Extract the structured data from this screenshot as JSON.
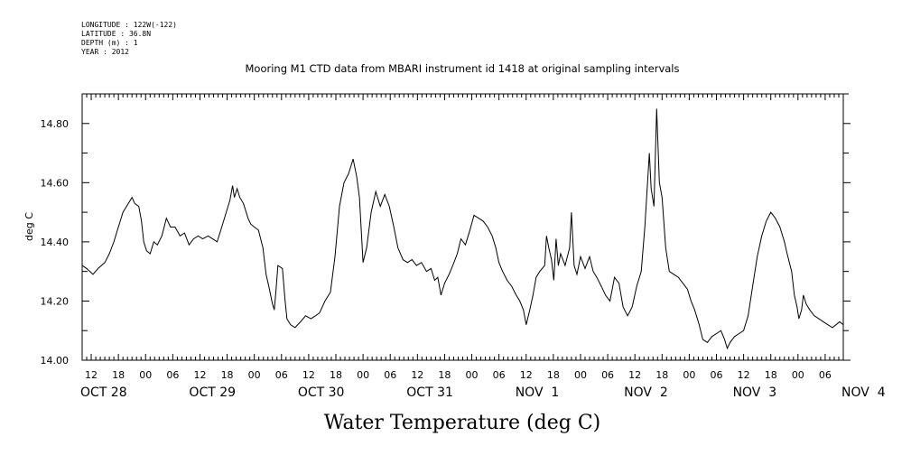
{
  "header": {
    "lines": [
      "LONGITUDE : 122W(-122)",
      "LATITUDE : 36.8N",
      "DEPTH (m) : 1",
      "YEAR : 2012"
    ]
  },
  "chart_data": {
    "type": "line",
    "title": "Mooring M1 CTD data from MBARI instrument id 1418 at original sampling intervals",
    "xlabel": "Water Temperature (deg C)",
    "ylabel": "deg C",
    "ylim": [
      14.0,
      14.9
    ],
    "yticks": [
      "14.00",
      "14.20",
      "14.40",
      "14.60",
      "14.80"
    ],
    "xlim_hours": [
      -14,
      154
    ],
    "x_hour_ticks": [
      "12",
      "18",
      "00",
      "06",
      "12",
      "18",
      "00",
      "06",
      "12",
      "18",
      "00",
      "06",
      "12",
      "18",
      "00",
      "06",
      "12",
      "18",
      "00",
      "06",
      "12",
      "18",
      "00",
      "06",
      "12",
      "18",
      "00",
      "06"
    ],
    "day_labels": [
      "OCT 28",
      "OCT 29",
      "OCT 30",
      "OCT 31",
      "NOV  1",
      "NOV  2",
      "NOV  3",
      "NOV  4"
    ],
    "grid": false,
    "series": [
      {
        "x_unit": "hours since OCT 29 00:00",
        "points": [
          [
            -14,
            14.32
          ],
          [
            -13,
            14.31
          ],
          [
            -11.6,
            14.29
          ],
          [
            -10.5,
            14.31
          ],
          [
            -9,
            14.33
          ],
          [
            -8,
            14.36
          ],
          [
            -7,
            14.4
          ],
          [
            -6,
            14.45
          ],
          [
            -5,
            14.5
          ],
          [
            -3.8,
            14.53
          ],
          [
            -3,
            14.55
          ],
          [
            -2.4,
            14.53
          ],
          [
            -1.5,
            14.52
          ],
          [
            -0.9,
            14.47
          ],
          [
            -0.4,
            14.4
          ],
          [
            0.2,
            14.37
          ],
          [
            1,
            14.36
          ],
          [
            1.8,
            14.4
          ],
          [
            2.6,
            14.39
          ],
          [
            3.6,
            14.42
          ],
          [
            4.6,
            14.48
          ],
          [
            5.5,
            14.45
          ],
          [
            6.5,
            14.45
          ],
          [
            7.6,
            14.42
          ],
          [
            8.6,
            14.43
          ],
          [
            9.6,
            14.39
          ],
          [
            10.6,
            14.41
          ],
          [
            11.6,
            14.42
          ],
          [
            12.6,
            14.41
          ],
          [
            13.8,
            14.42
          ],
          [
            14.8,
            14.41
          ],
          [
            15.8,
            14.4
          ],
          [
            16.8,
            14.45
          ],
          [
            17.6,
            14.49
          ],
          [
            18.6,
            14.54
          ],
          [
            19.2,
            14.59
          ],
          [
            19.6,
            14.55
          ],
          [
            20.2,
            14.58
          ],
          [
            20.8,
            14.55
          ],
          [
            21.6,
            14.53
          ],
          [
            22.6,
            14.48
          ],
          [
            23.2,
            14.46
          ],
          [
            24,
            14.45
          ],
          [
            24.9,
            14.44
          ],
          [
            25.9,
            14.38
          ],
          [
            26.6,
            14.29
          ],
          [
            27.2,
            14.25
          ],
          [
            28,
            14.19
          ],
          [
            28.4,
            14.17
          ],
          [
            28.8,
            14.24
          ],
          [
            29.2,
            14.32
          ],
          [
            30.2,
            14.31
          ],
          [
            30.8,
            14.2
          ],
          [
            31.2,
            14.14
          ],
          [
            32,
            14.12
          ],
          [
            33,
            14.11
          ],
          [
            34.2,
            14.13
          ],
          [
            35.3,
            14.15
          ],
          [
            36.5,
            14.14
          ],
          [
            37.5,
            14.15
          ],
          [
            38.4,
            14.16
          ],
          [
            39.6,
            14.2
          ],
          [
            40.8,
            14.23
          ],
          [
            41.8,
            14.35
          ],
          [
            42.8,
            14.52
          ],
          [
            43.8,
            14.6
          ],
          [
            44.8,
            14.63
          ],
          [
            45.8,
            14.68
          ],
          [
            46.6,
            14.62
          ],
          [
            47.2,
            14.55
          ],
          [
            48,
            14.33
          ],
          [
            48.8,
            14.38
          ],
          [
            49.8,
            14.5
          ],
          [
            50.8,
            14.57
          ],
          [
            51.8,
            14.52
          ],
          [
            52.8,
            14.56
          ],
          [
            53.8,
            14.52
          ],
          [
            54.8,
            14.45
          ],
          [
            55.7,
            14.38
          ],
          [
            56.8,
            14.34
          ],
          [
            57.8,
            14.33
          ],
          [
            58.8,
            14.34
          ],
          [
            59.8,
            14.32
          ],
          [
            60.9,
            14.33
          ],
          [
            62,
            14.3
          ],
          [
            63,
            14.31
          ],
          [
            63.8,
            14.27
          ],
          [
            64.5,
            14.28
          ],
          [
            65.2,
            14.22
          ],
          [
            66,
            14.26
          ],
          [
            67,
            14.29
          ],
          [
            67.8,
            14.32
          ],
          [
            68.8,
            14.36
          ],
          [
            69.6,
            14.41
          ],
          [
            70.6,
            14.39
          ],
          [
            71.6,
            14.44
          ],
          [
            72.5,
            14.49
          ],
          [
            73.5,
            14.48
          ],
          [
            74.5,
            14.47
          ],
          [
            75.5,
            14.45
          ],
          [
            76.5,
            14.42
          ],
          [
            77.3,
            14.38
          ],
          [
            78,
            14.33
          ],
          [
            78.8,
            14.3
          ],
          [
            79.8,
            14.27
          ],
          [
            80.8,
            14.25
          ],
          [
            81.8,
            14.22
          ],
          [
            82.6,
            14.2
          ],
          [
            83.4,
            14.17
          ],
          [
            84,
            14.12
          ],
          [
            84.8,
            14.17
          ],
          [
            85.5,
            14.22
          ],
          [
            86.2,
            14.28
          ],
          [
            87,
            14.3
          ],
          [
            88.1,
            14.32
          ],
          [
            88.5,
            14.42
          ],
          [
            89,
            14.38
          ],
          [
            89.6,
            14.34
          ],
          [
            90.1,
            14.27
          ],
          [
            90.6,
            14.41
          ],
          [
            91.1,
            14.32
          ],
          [
            91.6,
            14.36
          ],
          [
            92.6,
            14.32
          ],
          [
            93.6,
            14.38
          ],
          [
            94,
            14.5
          ],
          [
            94.6,
            14.32
          ],
          [
            95.2,
            14.29
          ],
          [
            96,
            14.35
          ],
          [
            97,
            14.31
          ],
          [
            98,
            14.35
          ],
          [
            98.8,
            14.3
          ],
          [
            99.6,
            14.28
          ],
          [
            100.6,
            14.25
          ],
          [
            101.5,
            14.22
          ],
          [
            102.5,
            14.2
          ],
          [
            103.5,
            14.28
          ],
          [
            104.5,
            14.26
          ],
          [
            105.4,
            14.18
          ],
          [
            106.4,
            14.15
          ],
          [
            107.4,
            14.18
          ],
          [
            108.4,
            14.25
          ],
          [
            109.4,
            14.3
          ],
          [
            110.2,
            14.45
          ],
          [
            111.2,
            14.7
          ],
          [
            111.6,
            14.58
          ],
          [
            112.2,
            14.52
          ],
          [
            112.8,
            14.85
          ],
          [
            113.4,
            14.6
          ],
          [
            114,
            14.55
          ],
          [
            114.8,
            14.38
          ],
          [
            115.6,
            14.3
          ],
          [
            116.6,
            14.29
          ],
          [
            117.6,
            14.28
          ],
          [
            118.6,
            14.26
          ],
          [
            119.6,
            14.24
          ],
          [
            120.4,
            14.2
          ],
          [
            121.2,
            14.17
          ],
          [
            122.2,
            14.12
          ],
          [
            123,
            14.07
          ],
          [
            124,
            14.06
          ],
          [
            125,
            14.08
          ],
          [
            126,
            14.09
          ],
          [
            127,
            14.1
          ],
          [
            127.8,
            14.07
          ],
          [
            128.4,
            14.04
          ],
          [
            129,
            14.06
          ],
          [
            130,
            14.08
          ],
          [
            131,
            14.09
          ],
          [
            132,
            14.1
          ],
          [
            133,
            14.15
          ],
          [
            134,
            14.25
          ],
          [
            135,
            14.35
          ],
          [
            136,
            14.42
          ],
          [
            137,
            14.47
          ],
          [
            138,
            14.5
          ],
          [
            139,
            14.48
          ],
          [
            140,
            14.45
          ],
          [
            141,
            14.4
          ],
          [
            141.6,
            14.36
          ],
          [
            142.6,
            14.3
          ],
          [
            143.2,
            14.22
          ],
          [
            143.8,
            14.18
          ],
          [
            144.2,
            14.14
          ],
          [
            144.8,
            14.17
          ],
          [
            145.2,
            14.22
          ],
          [
            145.8,
            14.19
          ],
          [
            146.6,
            14.17
          ],
          [
            147.6,
            14.15
          ],
          [
            148.6,
            14.14
          ],
          [
            149.6,
            14.13
          ],
          [
            150.6,
            14.12
          ],
          [
            151.6,
            14.11
          ],
          [
            152.4,
            14.12
          ],
          [
            153.2,
            14.13
          ],
          [
            154,
            14.12
          ]
        ]
      }
    ]
  }
}
